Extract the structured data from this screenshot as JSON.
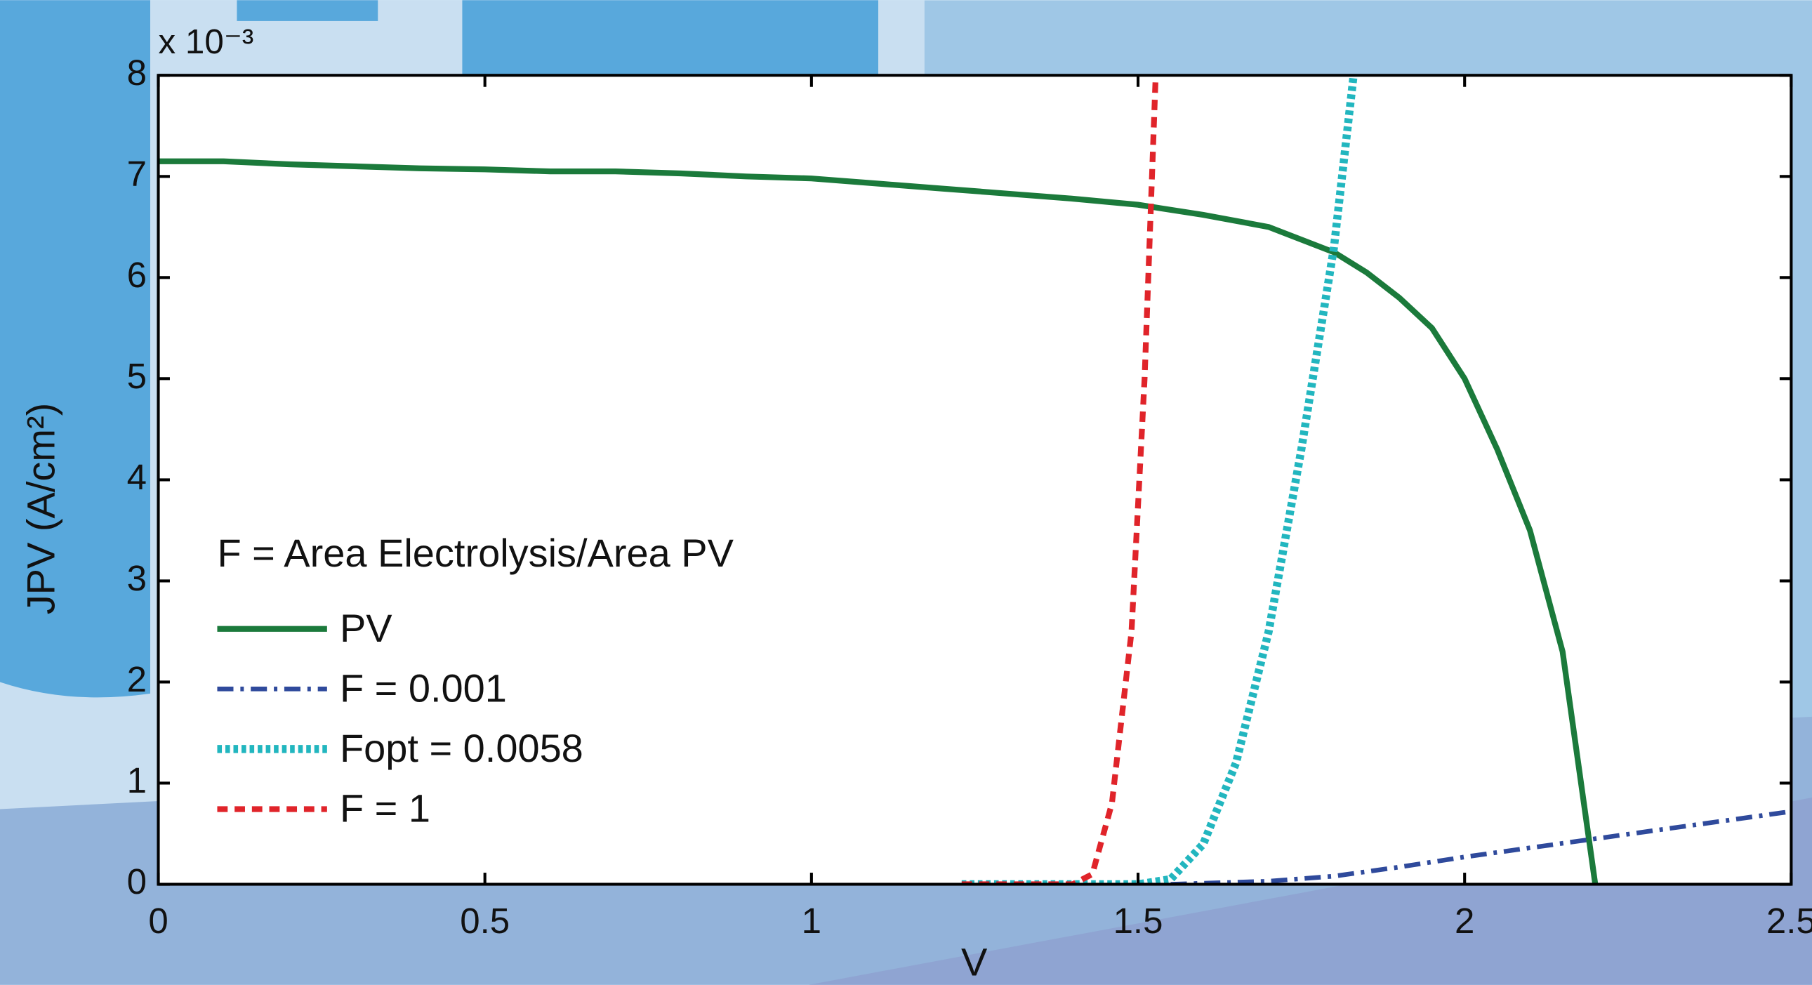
{
  "chart_data": {
    "type": "line",
    "xlabel": "V",
    "ylabel": "JPV (A/cm²)",
    "y_multiplier": "x 10⁻³",
    "legend_title": "F = Area Electrolysis/Area PV",
    "legend": "lower left",
    "grid": false,
    "xlim": [
      0,
      2.5
    ],
    "ylim": [
      0,
      8
    ],
    "xticks": [
      0,
      0.5,
      1,
      1.5,
      2,
      2.5
    ],
    "yticks": [
      0,
      1,
      2,
      3,
      4,
      5,
      6,
      7,
      8
    ],
    "series": [
      {
        "name": "PV",
        "color": "#1b7a3b",
        "linestyle": "solid",
        "x": [
          0,
          0.1,
          0.2,
          0.3,
          0.4,
          0.5,
          0.6,
          0.7,
          0.8,
          0.9,
          1.0,
          1.1,
          1.2,
          1.3,
          1.4,
          1.5,
          1.6,
          1.7,
          1.8,
          1.85,
          1.9,
          1.95,
          2.0,
          2.05,
          2.1,
          2.15,
          2.2
        ],
        "values": [
          7.15,
          7.15,
          7.12,
          7.1,
          7.08,
          7.07,
          7.05,
          7.05,
          7.03,
          7.0,
          6.98,
          6.93,
          6.88,
          6.83,
          6.78,
          6.72,
          6.62,
          6.5,
          6.25,
          6.05,
          5.8,
          5.5,
          5.0,
          4.3,
          3.5,
          2.3,
          0
        ]
      },
      {
        "name": "F = 0.001",
        "color": "#2f4a9c",
        "linestyle": "dashdot",
        "x": [
          1.55,
          1.7,
          1.8,
          1.9,
          2.0,
          2.1,
          2.2,
          2.3,
          2.4,
          2.5
        ],
        "values": [
          0,
          0.03,
          0.08,
          0.17,
          0.27,
          0.36,
          0.45,
          0.54,
          0.63,
          0.72
        ]
      },
      {
        "name": "Fopt = 0.0058",
        "color": "#22b6bf",
        "linestyle": "dotted",
        "x": [
          1.23,
          1.5,
          1.55,
          1.6,
          1.65,
          1.7,
          1.75,
          1.8,
          1.83
        ],
        "values": [
          0,
          0,
          0.05,
          0.4,
          1.2,
          2.5,
          4.3,
          6.3,
          8
        ]
      },
      {
        "name": "F = 1",
        "color": "#e0242a",
        "linestyle": "dashed",
        "x": [
          1.23,
          1.4,
          1.43,
          1.46,
          1.49,
          1.51,
          1.527
        ],
        "values": [
          0,
          0,
          0.1,
          0.8,
          2.5,
          5,
          8
        ]
      }
    ]
  }
}
